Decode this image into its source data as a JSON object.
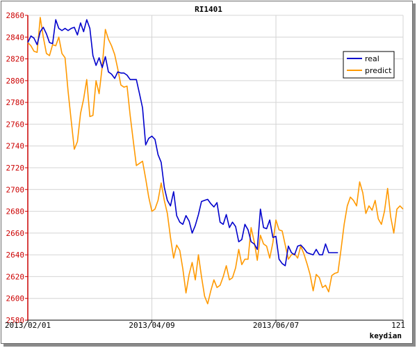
{
  "chart_data": {
    "type": "line",
    "title": "RI1401",
    "xlabel": "keydian",
    "ylabel": "",
    "xlim": [
      0,
      121
    ],
    "ylim": [
      2580,
      2860
    ],
    "y_ticks": [
      2580,
      2600,
      2620,
      2640,
      2660,
      2680,
      2700,
      2720,
      2740,
      2760,
      2780,
      2800,
      2820,
      2840,
      2860
    ],
    "x_ticks": [
      {
        "x": 0,
        "label": "2013/02/01"
      },
      {
        "x": 40,
        "label": "2013/04/09"
      },
      {
        "x": 80,
        "label": "2013/06/07"
      },
      {
        "x": 121,
        "label": "121"
      }
    ],
    "grid": true,
    "legend_position": "top-right",
    "series": [
      {
        "name": "real",
        "color": "#0000cc",
        "x": [
          0,
          1,
          2,
          3,
          4,
          5,
          6,
          7,
          8,
          9,
          10,
          11,
          12,
          13,
          14,
          15,
          16,
          17,
          18,
          19,
          20,
          21,
          22,
          23,
          24,
          25,
          26,
          27,
          28,
          29,
          30,
          31,
          32,
          33,
          34,
          35,
          36,
          37,
          38,
          39,
          40,
          41,
          42,
          43,
          44,
          45,
          46,
          47,
          48,
          49,
          50,
          51,
          52,
          53,
          54,
          55,
          56,
          57,
          58,
          59,
          60,
          61,
          62,
          63,
          64,
          65,
          66,
          67,
          68,
          69,
          70,
          71,
          72,
          73,
          74,
          75,
          76,
          77,
          78,
          79,
          80,
          81,
          82,
          83,
          84,
          85,
          86,
          87,
          88,
          89,
          90,
          91,
          92,
          93,
          94,
          95,
          96,
          97,
          98,
          99,
          100
        ],
        "values": [
          2835,
          2841,
          2839,
          2833,
          2845,
          2849,
          2843,
          2835,
          2834,
          2856,
          2848,
          2846,
          2848,
          2846,
          2848,
          2849,
          2842,
          2853,
          2845,
          2856,
          2848,
          2823,
          2814,
          2821,
          2812,
          2822,
          2808,
          2806,
          2802,
          2808,
          2807,
          2807,
          2805,
          2801,
          2801,
          2801,
          2788,
          2775,
          2741,
          2747,
          2749,
          2746,
          2732,
          2725,
          2702,
          2690,
          2685,
          2698,
          2676,
          2670,
          2668,
          2676,
          2671,
          2660,
          2667,
          2677,
          2689,
          2690,
          2691,
          2687,
          2684,
          2688,
          2670,
          2668,
          2677,
          2665,
          2670,
          2666,
          2652,
          2654,
          2668,
          2663,
          2652,
          2650,
          2645,
          2682,
          2665,
          2664,
          2672,
          2656,
          2657,
          2636,
          2632,
          2630,
          2648,
          2642,
          2640,
          2648,
          2649,
          2646,
          2642,
          2641,
          2640,
          2645,
          2640,
          2640,
          2650,
          2642,
          2642,
          2642,
          2642
        ]
      },
      {
        "name": "predict",
        "color": "#ff9900",
        "x": [
          0,
          1,
          2,
          3,
          4,
          5,
          6,
          7,
          8,
          9,
          10,
          11,
          12,
          13,
          14,
          15,
          16,
          17,
          18,
          19,
          20,
          21,
          22,
          23,
          24,
          25,
          26,
          27,
          28,
          29,
          30,
          31,
          32,
          33,
          34,
          35,
          36,
          37,
          38,
          39,
          40,
          41,
          42,
          43,
          44,
          45,
          46,
          47,
          48,
          49,
          50,
          51,
          52,
          53,
          54,
          55,
          56,
          57,
          58,
          59,
          60,
          61,
          62,
          63,
          64,
          65,
          66,
          67,
          68,
          69,
          70,
          71,
          72,
          73,
          74,
          75,
          76,
          77,
          78,
          79,
          80,
          81,
          82,
          83,
          84,
          85,
          86,
          87,
          88,
          89,
          90,
          91,
          92,
          93,
          94,
          95,
          96,
          97,
          98,
          99,
          100,
          101,
          102,
          103,
          104,
          105,
          106,
          107,
          108,
          109,
          110,
          111,
          112,
          113,
          114,
          115,
          116,
          117,
          118,
          119,
          120,
          121
        ],
        "values": [
          2835,
          2832,
          2827,
          2826,
          2858,
          2840,
          2825,
          2823,
          2833,
          2832,
          2840,
          2825,
          2821,
          2790,
          2763,
          2737,
          2744,
          2770,
          2783,
          2801,
          2767,
          2768,
          2800,
          2788,
          2813,
          2847,
          2838,
          2832,
          2824,
          2811,
          2796,
          2794,
          2795,
          2768,
          2745,
          2722,
          2724,
          2726,
          2710,
          2693,
          2680,
          2682,
          2690,
          2706,
          2690,
          2678,
          2656,
          2637,
          2649,
          2644,
          2627,
          2605,
          2622,
          2633,
          2617,
          2640,
          2620,
          2602,
          2595,
          2607,
          2617,
          2610,
          2612,
          2620,
          2630,
          2617,
          2619,
          2628,
          2645,
          2631,
          2636,
          2636,
          2665,
          2652,
          2635,
          2658,
          2650,
          2648,
          2637,
          2651,
          2672,
          2663,
          2662,
          2649,
          2636,
          2640,
          2641,
          2637,
          2648,
          2641,
          2632,
          2622,
          2607,
          2622,
          2619,
          2610,
          2612,
          2606,
          2621,
          2623,
          2624,
          2645,
          2668,
          2685,
          2693,
          2690,
          2685,
          2707,
          2697,
          2678,
          2685,
          2681,
          2690,
          2673,
          2668,
          2680,
          2701,
          2675,
          2660,
          2682,
          2685,
          2682
        ]
      }
    ]
  }
}
